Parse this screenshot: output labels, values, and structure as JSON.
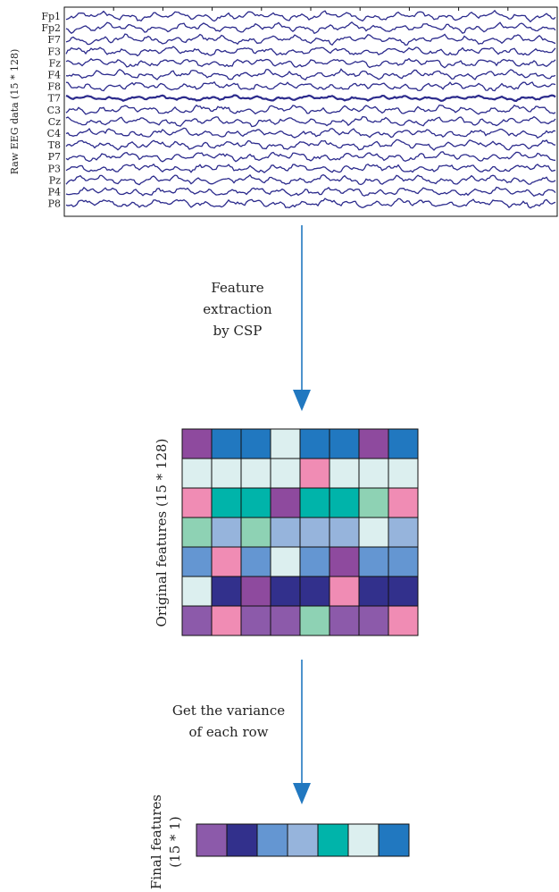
{
  "eeg": {
    "y_label": "Raw EEG data (15 * 128)",
    "channels": [
      "Fp1",
      "Fp2",
      "F7",
      "F3",
      "Fz",
      "F4",
      "F8",
      "T7",
      "C3",
      "Cz",
      "C4",
      "T8",
      "P7",
      "P3",
      "Pz",
      "P4",
      "P8"
    ],
    "trace_color": "#2b2a8c"
  },
  "step1": {
    "lines": [
      "Feature",
      "extraction",
      "by CSP"
    ]
  },
  "original": {
    "label": "Original features (15 * 128)",
    "grid": [
      [
        "#8e4a9e",
        "#2178c0",
        "#2178c0",
        "#dcefef",
        "#2178c0",
        "#2178c0",
        "#8e4a9e",
        "#2178c0"
      ],
      [
        "#dcefef",
        "#dcefef",
        "#dcefef",
        "#dcefef",
        "#f08cb4",
        "#dcefef",
        "#dcefef",
        "#dcefef"
      ],
      [
        "#f08cb4",
        "#00b4aa",
        "#00b4aa",
        "#8e4a9e",
        "#00b4aa",
        "#00b4aa",
        "#8ed2b4",
        "#f08cb4"
      ],
      [
        "#8ed2b4",
        "#96b4dc",
        "#8ed2b4",
        "#96b4dc",
        "#96b4dc",
        "#96b4dc",
        "#dcefef",
        "#96b4dc"
      ],
      [
        "#6496d2",
        "#f08cb4",
        "#6496d2",
        "#dcefef",
        "#6496d2",
        "#8e4a9e",
        "#6496d2",
        "#6496d2"
      ],
      [
        "#dcefef",
        "#32308c",
        "#8e4a9e",
        "#32308c",
        "#32308c",
        "#f08cb4",
        "#32308c",
        "#32308c"
      ],
      [
        "#8c5aaa",
        "#f08cb4",
        "#8c5aaa",
        "#8c5aaa",
        "#8ed2b4",
        "#8c5aaa",
        "#8c5aaa",
        "#f08cb4"
      ]
    ]
  },
  "step2": {
    "lines": [
      "Get the variance",
      "of each row"
    ]
  },
  "final": {
    "label_lines": [
      "Final features",
      "(15 * 1)"
    ],
    "cells": [
      "#8c5aaa",
      "#32308c",
      "#6496d2",
      "#96b4dc",
      "#00b4aa",
      "#dcefef",
      "#2178c0"
    ]
  },
  "colors": {
    "arrow": "#2178c0",
    "grid_line": "#111111"
  }
}
